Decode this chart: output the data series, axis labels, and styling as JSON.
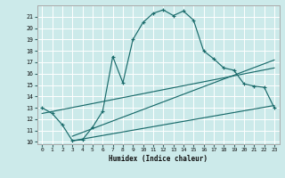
{
  "xlabel": "Humidex (Indice chaleur)",
  "bg_color": "#cceaea",
  "grid_color": "#b0d4d4",
  "line_color": "#1a6b6b",
  "xlim": [
    -0.5,
    23.5
  ],
  "ylim": [
    9.8,
    22.0
  ],
  "yticks": [
    10,
    11,
    12,
    13,
    14,
    15,
    16,
    17,
    18,
    19,
    20,
    21
  ],
  "xticks": [
    0,
    1,
    2,
    3,
    4,
    5,
    6,
    7,
    8,
    9,
    10,
    11,
    12,
    13,
    14,
    15,
    16,
    17,
    18,
    19,
    20,
    21,
    22,
    23
  ],
  "main_x": [
    0,
    1,
    2,
    3,
    4,
    5,
    6,
    7,
    8,
    9,
    10,
    11,
    12,
    13,
    14,
    15,
    16,
    17,
    18,
    19,
    20,
    21,
    22,
    23
  ],
  "main_y": [
    13.0,
    12.5,
    11.5,
    10.1,
    10.2,
    11.3,
    12.7,
    17.5,
    15.2,
    19.0,
    20.5,
    21.3,
    21.6,
    21.1,
    21.5,
    20.7,
    18.0,
    17.3,
    16.5,
    16.3,
    15.1,
    14.9,
    14.8,
    13.0
  ],
  "line1_x": [
    0,
    23
  ],
  "line1_y": [
    12.5,
    16.5
  ],
  "line2_x": [
    3,
    23
  ],
  "line2_y": [
    10.1,
    13.2
  ],
  "line3_x": [
    3,
    23
  ],
  "line3_y": [
    10.5,
    17.2
  ]
}
